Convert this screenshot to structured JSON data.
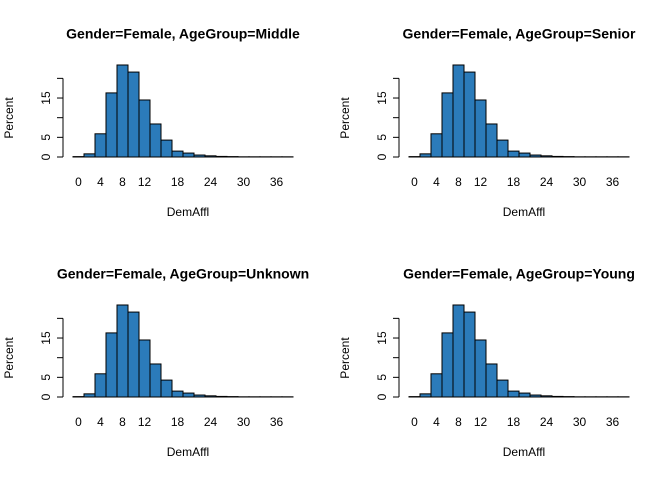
{
  "chart_data": [
    {
      "type": "bar",
      "title": "Gender=Female, AgeGroup=Middle",
      "xlabel": "DemAffl",
      "ylabel": "Percent",
      "categories": [
        "0",
        null,
        "4",
        null,
        "8",
        null,
        "12",
        null,
        null,
        "18",
        null,
        null,
        "24",
        null,
        null,
        "30",
        null,
        null,
        "36",
        null
      ],
      "values": [
        0.1,
        0.8,
        5.9,
        16.3,
        23.4,
        21.6,
        14.5,
        8.4,
        4.3,
        1.5,
        1.0,
        0.5,
        0.3,
        0.15,
        0.1,
        0.05,
        0.05,
        0.05,
        0.05,
        0.05
      ],
      "color": "#2b7bba",
      "ylim": [
        0,
        25
      ],
      "yticks": [
        0,
        5,
        {
          "value": 10,
          "label": null
        },
        15,
        {
          "value": 20,
          "label": null
        }
      ]
    },
    {
      "type": "bar",
      "title": "Gender=Female, AgeGroup=Senior",
      "xlabel": "DemAffl",
      "ylabel": "Percent",
      "categories": [
        "0",
        null,
        "4",
        null,
        "8",
        null,
        "12",
        null,
        null,
        "18",
        null,
        null,
        "24",
        null,
        null,
        "30",
        null,
        null,
        "36",
        null
      ],
      "values": [
        0.1,
        0.8,
        5.9,
        16.3,
        23.4,
        21.6,
        14.5,
        8.4,
        4.3,
        1.5,
        1.0,
        0.5,
        0.3,
        0.15,
        0.1,
        0.05,
        0.05,
        0.05,
        0.05,
        0.05
      ],
      "color": "#2b7bba",
      "ylim": [
        0,
        25
      ],
      "yticks": [
        0,
        5,
        {
          "value": 10,
          "label": null
        },
        15,
        {
          "value": 20,
          "label": null
        }
      ]
    },
    {
      "type": "bar",
      "title": "Gender=Female, AgeGroup=Unknown",
      "xlabel": "DemAffl",
      "ylabel": "Percent",
      "categories": [
        "0",
        null,
        "4",
        null,
        "8",
        null,
        "12",
        null,
        null,
        "18",
        null,
        null,
        "24",
        null,
        null,
        "30",
        null,
        null,
        "36",
        null
      ],
      "values": [
        0.1,
        0.8,
        5.9,
        16.3,
        23.4,
        21.6,
        14.5,
        8.4,
        4.3,
        1.5,
        1.0,
        0.5,
        0.3,
        0.15,
        0.1,
        0.05,
        0.05,
        0.05,
        0.05,
        0.05
      ],
      "color": "#2b7bba",
      "ylim": [
        0,
        25
      ],
      "yticks": [
        0,
        5,
        {
          "value": 10,
          "label": null
        },
        15,
        {
          "value": 20,
          "label": null
        }
      ]
    },
    {
      "type": "bar",
      "title": "Gender=Female, AgeGroup=Young",
      "xlabel": "DemAffl",
      "ylabel": "Percent",
      "categories": [
        "0",
        null,
        "4",
        null,
        "8",
        null,
        "12",
        null,
        null,
        "18",
        null,
        null,
        "24",
        null,
        null,
        "30",
        null,
        null,
        "36",
        null
      ],
      "values": [
        0.1,
        0.8,
        5.9,
        16.3,
        23.4,
        21.6,
        14.5,
        8.4,
        4.3,
        1.5,
        1.0,
        0.5,
        0.3,
        0.15,
        0.1,
        0.05,
        0.05,
        0.05,
        0.05,
        0.05
      ],
      "color": "#2b7bba",
      "ylim": [
        0,
        25
      ],
      "yticks": [
        0,
        5,
        {
          "value": 10,
          "label": null
        },
        15,
        {
          "value": 20,
          "label": null
        }
      ]
    }
  ]
}
